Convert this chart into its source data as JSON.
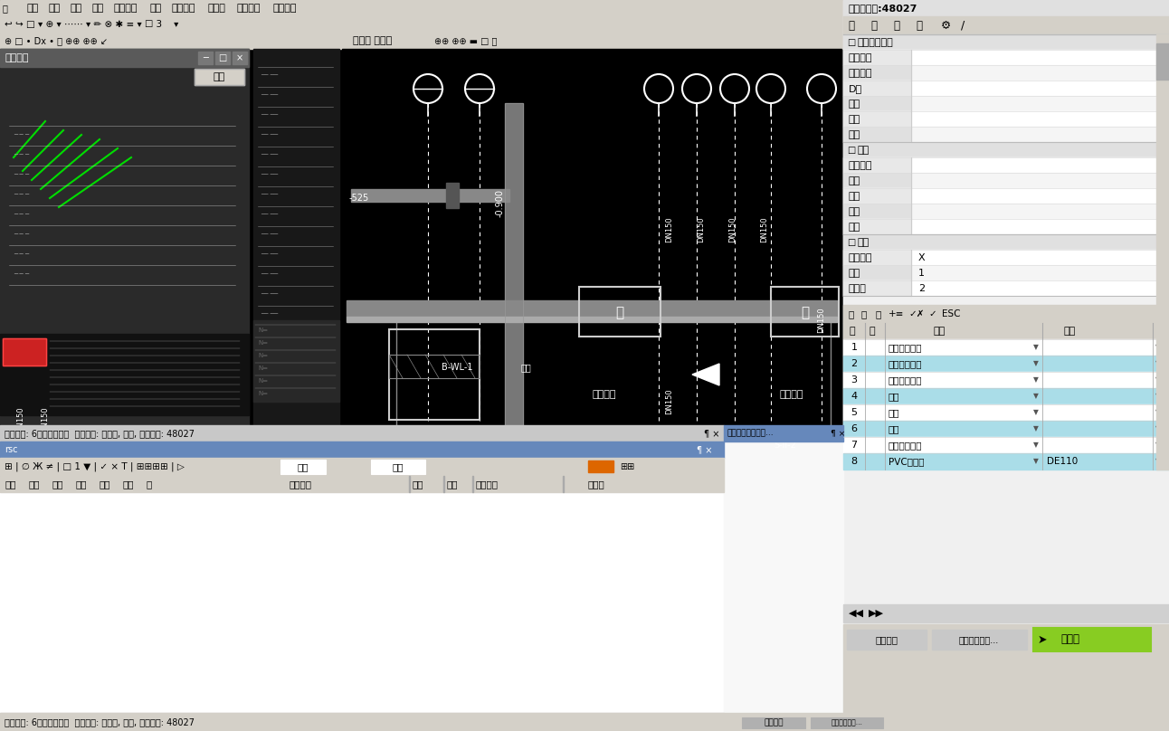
{
  "bg_color": "#404040",
  "menubar_text": [
    "功能",
    "设置",
    "视图",
    "输出",
    "软件升级",
    "帮助",
    "在线支持",
    "计算器",
    "我的资料",
    "订购软件"
  ],
  "data_panel_title": "数据添加页:48027",
  "tabs": [
    "定",
    "已",
    "模",
    "组"
  ],
  "section1_title": "清单定额数据",
  "section1_fields": [
    "项目名称",
    "规格型号",
    "D値",
    "定额",
    "清单",
    "单位"
  ],
  "section2_title": "分类",
  "section2_fields": [
    "分部分项",
    "部位",
    "系统",
    "支路",
    "用途"
  ],
  "section3_title": "其他",
  "section3_fields": [
    "计算规则",
    "倍数",
    "小数点"
  ],
  "section3_values": [
    "X",
    "1",
    "2"
  ],
  "table_headers": [
    "序",
    "选",
    "名称",
    "规格"
  ],
  "table_rows": [
    {
      "seq": "1",
      "checked": false,
      "name": "管道刷油面积",
      "spec": "",
      "highlight": false
    },
    {
      "seq": "2",
      "checked": true,
      "name": "管道保温层体",
      "spec": "",
      "highlight": true
    },
    {
      "seq": "3",
      "checked": false,
      "name": "管道保温层面",
      "spec": "",
      "highlight": false
    },
    {
      "seq": "4",
      "checked": true,
      "name": "支架",
      "spec": "",
      "highlight": true
    },
    {
      "seq": "5",
      "checked": false,
      "name": "支架",
      "spec": "",
      "highlight": false
    },
    {
      "seq": "6",
      "checked": true,
      "name": "卡箍",
      "spec": "",
      "highlight": true
    },
    {
      "seq": "7",
      "checked": false,
      "name": "管道保温层体",
      "spec": "",
      "highlight": false
    },
    {
      "seq": "8",
      "checked": true,
      "name": "PVC排水管",
      "spec": "DE110",
      "highlight": true
    }
  ],
  "status_bar": "工程名称: 6号给排水工程  工程类别: 给排水, 采暖, 燃气工程: 48027",
  "bottom_panel_title": "选中行计算式显示...",
  "left_panel_title": "显示查看",
  "query_btn": "查找",
  "bottom_tabs": [
    "标注",
    "关联",
    "分部",
    "部位",
    "系统",
    "支路",
    "目"
  ],
  "footer_btns": [
    "分类显示",
    "选中行计算式...",
    "加工费"
  ],
  "highlight_color": "#aadde8",
  "white": "#ffffff",
  "light_gray": "#e8e8e8",
  "toolbar_gray": "#d4d0c8",
  "panel_gray": "#f0f0f0",
  "cad_black": "#000000",
  "dark_gray": "#1c1c1c"
}
